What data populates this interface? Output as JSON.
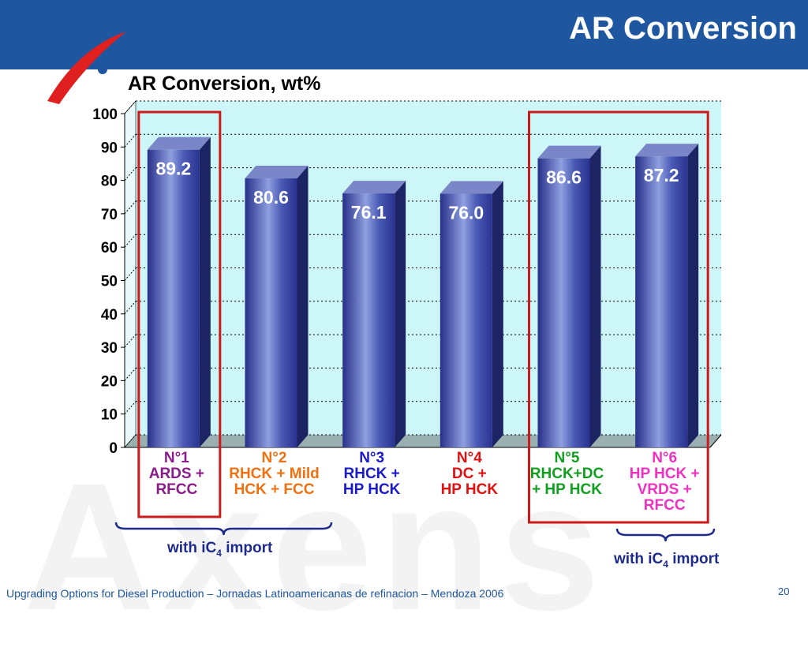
{
  "slide": {
    "title": "AR Conversion",
    "footer": "Upgrading Options for Diesel Production – Jornadas Latinoamericanas de refinacion – Mendoza 2006",
    "page_number": "20",
    "watermark": "Axens"
  },
  "colors": {
    "header": "#1e56a0",
    "logo_red": "#e0201e",
    "plot_bg": "#ccf6f8",
    "bar": "#3a4aa0",
    "bar_dark": "#1c2463",
    "highlight_box": "#cc1a1a"
  },
  "chart_data": {
    "type": "bar",
    "title": "AR Conversion, wt%",
    "xlabel": "",
    "ylabel": "",
    "ylim": [
      0,
      100
    ],
    "yticks": [
      "0",
      "10",
      "20",
      "30",
      "40",
      "50",
      "60",
      "70",
      "80",
      "90",
      "100"
    ],
    "grid": true,
    "categories": [
      {
        "lines": [
          "N°1",
          "ARDS +",
          "RFCC"
        ],
        "color": "#8b1a8b"
      },
      {
        "lines": [
          "N°2",
          "RHCK + Mild",
          "HCK + FCC"
        ],
        "color": "#f07010"
      },
      {
        "lines": [
          "N°3",
          "RHCK +",
          "HP HCK"
        ],
        "color": "#1a1acc"
      },
      {
        "lines": [
          "N°4",
          "DC +",
          "HP HCK"
        ],
        "color": "#e01010"
      },
      {
        "lines": [
          "N°5",
          "RHCK+DC",
          "+ HP HCK"
        ],
        "color": "#10a020"
      },
      {
        "lines": [
          "N°6",
          "HP HCK +",
          "VRDS +",
          "RFCC"
        ],
        "color": "#f030c0"
      }
    ],
    "values": [
      89.2,
      80.6,
      76.1,
      76.0,
      86.6,
      87.2
    ],
    "data_labels": [
      "89.2",
      "80.6",
      "76.1",
      "76.0",
      "86.6",
      "87.2"
    ]
  },
  "annotations": {
    "left_group": {
      "prefix": "with  iC",
      "sub": "4",
      "suffix": " import"
    },
    "right_group": {
      "prefix": "with  iC",
      "sub": "4",
      "suffix": " import"
    }
  }
}
